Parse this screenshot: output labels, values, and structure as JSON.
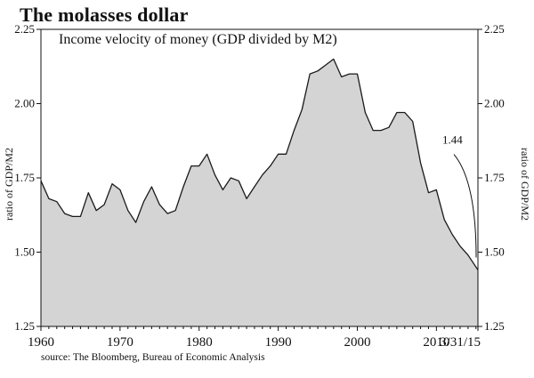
{
  "chart_data": {
    "type": "area",
    "title": "The molasses dollar",
    "subtitle": "Income velocity of money (GDP divided by M2)",
    "ylabel_left": "ratio of GDP/M2",
    "ylabel_right": "ratio of GDP/M2",
    "source": "source: The Bloomberg, Bureau of Economic Analysis",
    "ylim": [
      1.25,
      2.25
    ],
    "y_ticks": [
      1.25,
      1.5,
      1.75,
      2.0,
      2.25
    ],
    "y_tick_labels": [
      "1.25",
      "1.50",
      "1.75",
      "2.00",
      "2.25"
    ],
    "xlim": [
      1960,
      2015.25
    ],
    "x_ticks": [
      1960,
      1970,
      1980,
      1990,
      2000,
      2010,
      2015.25
    ],
    "x_tick_labels": [
      "1960",
      "1970",
      "1980",
      "1990",
      "2000",
      "2010",
      "3/31/15"
    ],
    "annotation": {
      "label": "1.44",
      "x": 2015.25,
      "y": 1.44
    },
    "grid": false,
    "series": [
      {
        "fill_color": "#d4d4d4",
        "line_color": "#1a1a1a",
        "x": [
          1960,
          1961,
          1962,
          1963,
          1964,
          1965,
          1966,
          1967,
          1968,
          1969,
          1970,
          1971,
          1972,
          1973,
          1974,
          1975,
          1976,
          1977,
          1978,
          1979,
          1980,
          1981,
          1982,
          1983,
          1984,
          1985,
          1986,
          1987,
          1988,
          1989,
          1990,
          1991,
          1992,
          1993,
          1994,
          1995,
          1996,
          1997,
          1998,
          1999,
          2000,
          2001,
          2002,
          2003,
          2004,
          2005,
          2006,
          2007,
          2008,
          2009,
          2010,
          2011,
          2012,
          2013,
          2014,
          2015.25
        ],
        "values": [
          1.74,
          1.68,
          1.67,
          1.63,
          1.62,
          1.62,
          1.7,
          1.64,
          1.66,
          1.73,
          1.71,
          1.64,
          1.6,
          1.67,
          1.72,
          1.66,
          1.63,
          1.64,
          1.72,
          1.79,
          1.79,
          1.83,
          1.76,
          1.71,
          1.75,
          1.74,
          1.68,
          1.72,
          1.76,
          1.79,
          1.83,
          1.83,
          1.91,
          1.98,
          2.1,
          2.11,
          2.13,
          2.15,
          2.09,
          2.1,
          2.1,
          1.97,
          1.91,
          1.91,
          1.92,
          1.97,
          1.97,
          1.94,
          1.8,
          1.7,
          1.71,
          1.61,
          1.56,
          1.52,
          1.49,
          1.44
        ]
      }
    ]
  }
}
